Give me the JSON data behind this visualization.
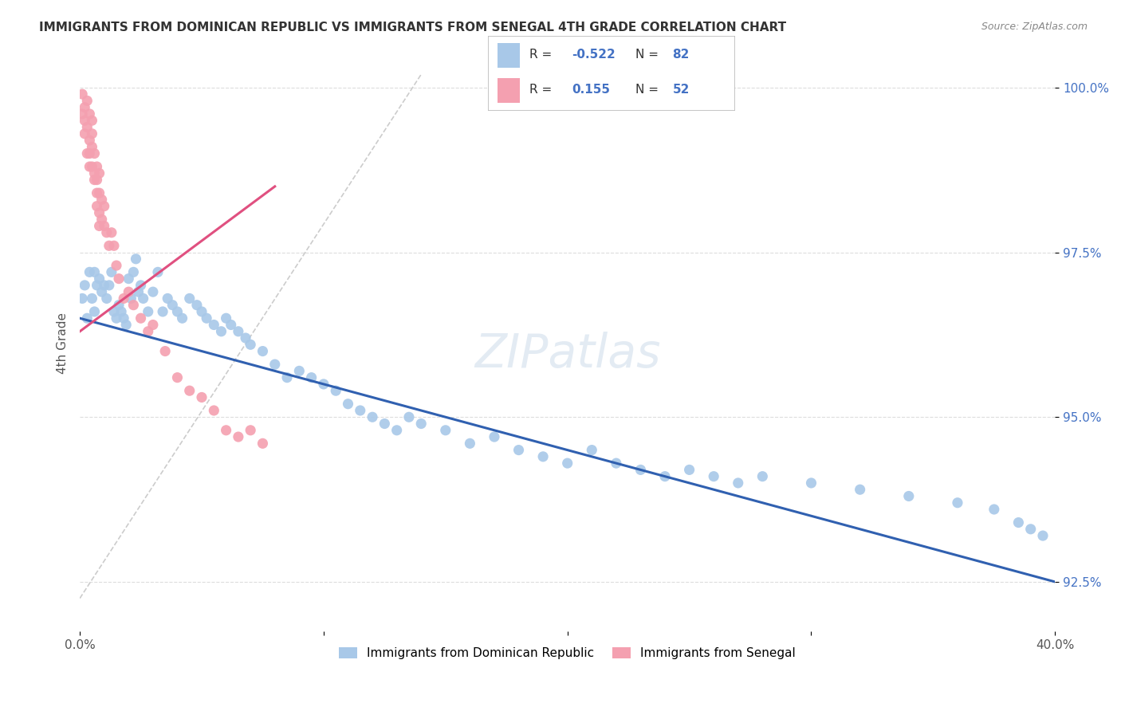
{
  "title": "IMMIGRANTS FROM DOMINICAN REPUBLIC VS IMMIGRANTS FROM SENEGAL 4TH GRADE CORRELATION CHART",
  "source": "Source: ZipAtlas.com",
  "xlabel_blue": "Immigrants from Dominican Republic",
  "xlabel_pink": "Immigrants from Senegal",
  "ylabel": "4th Grade",
  "xmin": 0.0,
  "xmax": 0.4,
  "ymin": 0.9175,
  "ymax": 1.005,
  "yticks": [
    0.925,
    0.95,
    0.975,
    1.0
  ],
  "ytick_labels": [
    "92.5%",
    "95.0%",
    "97.5%",
    "100.0%"
  ],
  "xticks": [
    0.0,
    0.1,
    0.2,
    0.3,
    0.4
  ],
  "xtick_labels": [
    "0.0%",
    "",
    "",
    "",
    "40.0%"
  ],
  "legend_R_blue": "-0.522",
  "legend_N_blue": "82",
  "legend_R_pink": "0.155",
  "legend_N_pink": "52",
  "blue_color": "#a8c8e8",
  "pink_color": "#f4a0b0",
  "blue_line_color": "#3060b0",
  "pink_line_color": "#e05080",
  "ref_line_color": "#cccccc",
  "background": "#ffffff",
  "blue_line_x0": 0.0,
  "blue_line_y0": 0.965,
  "blue_line_x1": 0.4,
  "blue_line_y1": 0.925,
  "pink_line_x0": 0.0,
  "pink_line_y0": 0.963,
  "pink_line_x1": 0.08,
  "pink_line_y1": 0.985,
  "ref_line_x0": 0.0,
  "ref_line_y0": 0.9225,
  "ref_line_x1": 0.14,
  "ref_line_y1": 1.002,
  "blue_scatter_x": [
    0.001,
    0.002,
    0.003,
    0.004,
    0.005,
    0.006,
    0.006,
    0.007,
    0.008,
    0.009,
    0.01,
    0.011,
    0.012,
    0.013,
    0.014,
    0.015,
    0.016,
    0.017,
    0.018,
    0.019,
    0.02,
    0.021,
    0.022,
    0.023,
    0.024,
    0.025,
    0.026,
    0.028,
    0.03,
    0.032,
    0.034,
    0.036,
    0.038,
    0.04,
    0.042,
    0.045,
    0.048,
    0.05,
    0.052,
    0.055,
    0.058,
    0.06,
    0.062,
    0.065,
    0.068,
    0.07,
    0.075,
    0.08,
    0.085,
    0.09,
    0.095,
    0.1,
    0.105,
    0.11,
    0.115,
    0.12,
    0.125,
    0.13,
    0.135,
    0.14,
    0.15,
    0.16,
    0.17,
    0.18,
    0.19,
    0.2,
    0.21,
    0.22,
    0.23,
    0.24,
    0.25,
    0.26,
    0.27,
    0.28,
    0.3,
    0.32,
    0.34,
    0.36,
    0.375,
    0.385,
    0.39,
    0.395
  ],
  "blue_scatter_y": [
    0.968,
    0.97,
    0.965,
    0.972,
    0.968,
    0.972,
    0.966,
    0.97,
    0.971,
    0.969,
    0.97,
    0.968,
    0.97,
    0.972,
    0.966,
    0.965,
    0.967,
    0.966,
    0.965,
    0.964,
    0.971,
    0.968,
    0.972,
    0.974,
    0.969,
    0.97,
    0.968,
    0.966,
    0.969,
    0.972,
    0.966,
    0.968,
    0.967,
    0.966,
    0.965,
    0.968,
    0.967,
    0.966,
    0.965,
    0.964,
    0.963,
    0.965,
    0.964,
    0.963,
    0.962,
    0.961,
    0.96,
    0.958,
    0.956,
    0.957,
    0.956,
    0.955,
    0.954,
    0.952,
    0.951,
    0.95,
    0.949,
    0.948,
    0.95,
    0.949,
    0.948,
    0.946,
    0.947,
    0.945,
    0.944,
    0.943,
    0.945,
    0.943,
    0.942,
    0.941,
    0.942,
    0.941,
    0.94,
    0.941,
    0.94,
    0.939,
    0.938,
    0.937,
    0.936,
    0.934,
    0.933,
    0.932
  ],
  "pink_scatter_x": [
    0.001,
    0.001,
    0.002,
    0.002,
    0.002,
    0.003,
    0.003,
    0.003,
    0.004,
    0.004,
    0.004,
    0.004,
    0.005,
    0.005,
    0.005,
    0.005,
    0.006,
    0.006,
    0.006,
    0.007,
    0.007,
    0.007,
    0.007,
    0.008,
    0.008,
    0.008,
    0.008,
    0.009,
    0.009,
    0.01,
    0.01,
    0.011,
    0.012,
    0.013,
    0.014,
    0.015,
    0.016,
    0.018,
    0.02,
    0.022,
    0.025,
    0.028,
    0.03,
    0.035,
    0.04,
    0.045,
    0.05,
    0.055,
    0.06,
    0.065,
    0.07,
    0.075
  ],
  "pink_scatter_y": [
    0.996,
    0.999,
    0.997,
    0.995,
    0.993,
    0.998,
    0.994,
    0.99,
    0.996,
    0.992,
    0.99,
    0.988,
    0.995,
    0.993,
    0.991,
    0.988,
    0.987,
    0.99,
    0.986,
    0.988,
    0.986,
    0.984,
    0.982,
    0.987,
    0.984,
    0.981,
    0.979,
    0.983,
    0.98,
    0.982,
    0.979,
    0.978,
    0.976,
    0.978,
    0.976,
    0.973,
    0.971,
    0.968,
    0.969,
    0.967,
    0.965,
    0.963,
    0.964,
    0.96,
    0.956,
    0.954,
    0.953,
    0.951,
    0.948,
    0.947,
    0.948,
    0.946
  ]
}
